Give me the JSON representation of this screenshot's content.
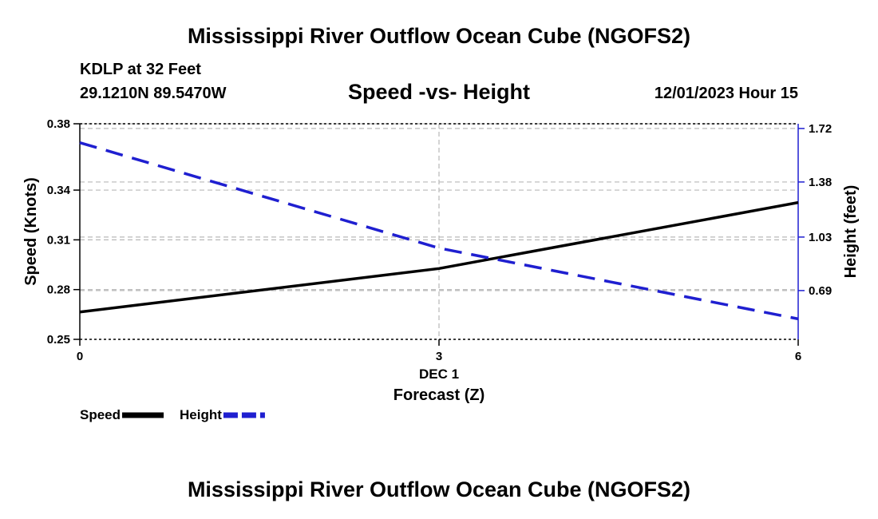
{
  "header": {
    "main_title": "Mississippi River Outflow Ocean Cube (NGOFS2)",
    "station": "KDLP at 32 Feet",
    "coords": "29.1210N  89.5470W",
    "subtitle": "Speed -vs- Height",
    "datetime": "12/01/2023 Hour 15"
  },
  "footer": {
    "title": "Mississippi River Outflow Ocean Cube (NGOFS2)"
  },
  "chart_data": {
    "type": "line",
    "x": [
      0,
      3,
      6
    ],
    "x_ticks": [
      0,
      3,
      6
    ],
    "x_tick_labels": [
      "0",
      "3",
      "6"
    ],
    "x_day_label": "DEC 1",
    "xlabel": "Forecast (Z)",
    "xlim": [
      0,
      6
    ],
    "ylabel": "Speed (Knots)",
    "ylim": [
      0.25,
      0.38
    ],
    "y_ticks": [
      0.38,
      0.34,
      0.31,
      0.28,
      0.25
    ],
    "y2label": "Height (feet)",
    "y2lim": [
      0.38,
      1.75
    ],
    "y2_ticks": [
      1.72,
      1.38,
      1.03,
      0.69
    ],
    "series": [
      {
        "name": "Speed",
        "axis": "left",
        "color": "#000000",
        "style": "solid",
        "x": [
          0,
          3,
          6
        ],
        "values": [
          0.2665,
          0.2927,
          0.3325
        ]
      },
      {
        "name": "Height",
        "axis": "right",
        "color": "#1f1fd0",
        "style": "dashed",
        "x": [
          0,
          3,
          6
        ],
        "values": [
          1.63,
          0.96,
          0.51
        ]
      }
    ],
    "legend": [
      "Speed",
      "Height"
    ],
    "grid": true
  }
}
